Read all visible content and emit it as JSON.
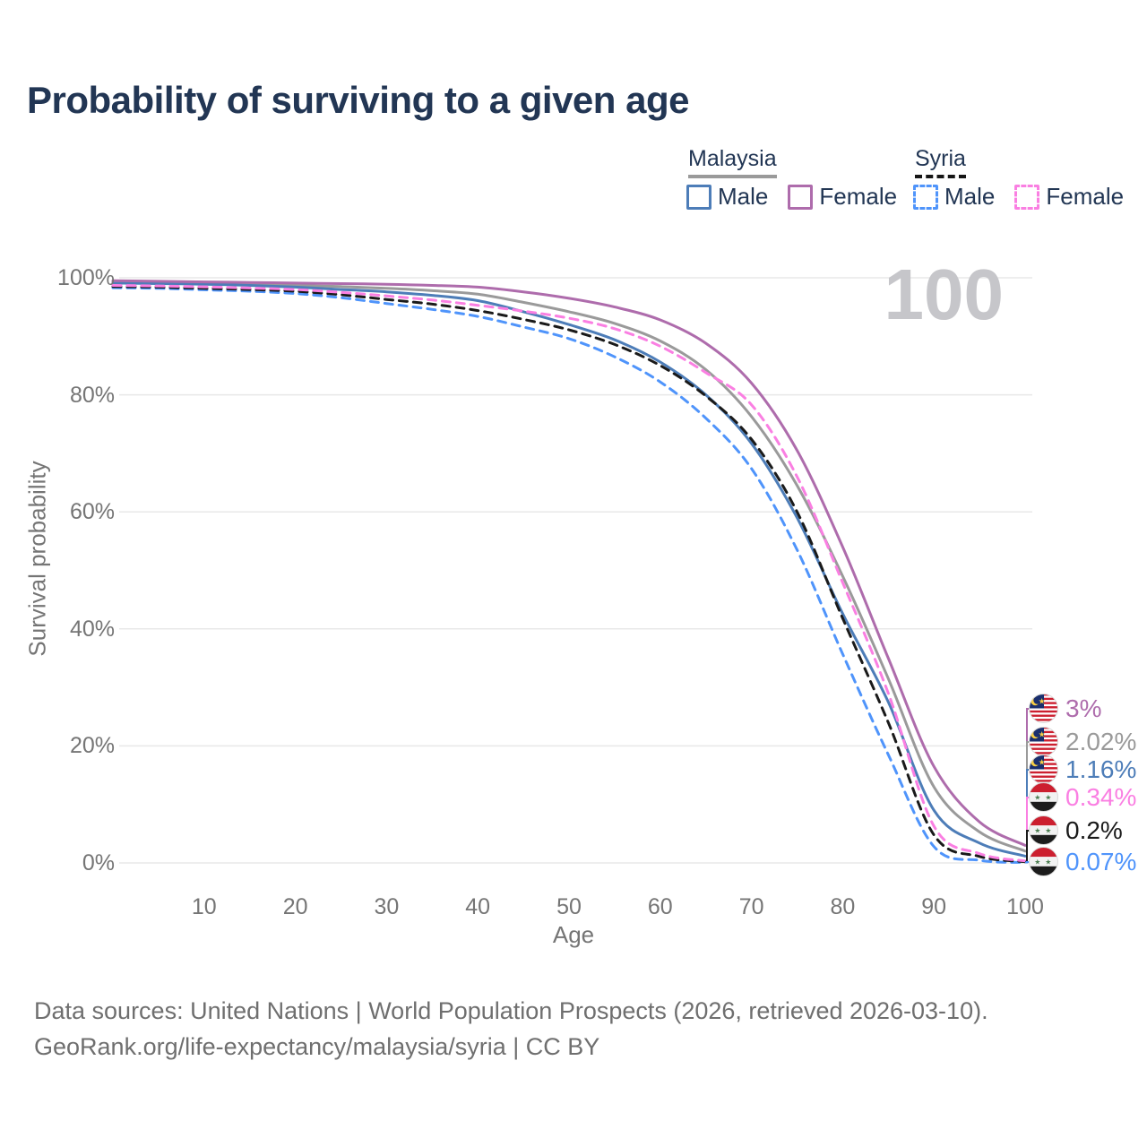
{
  "title": "Probability of surviving to a given age",
  "watermark": "100",
  "legend": {
    "groups": [
      {
        "label": "Malaysia",
        "line_style": "solid",
        "items": [
          {
            "label": "Male",
            "color": "#4d7db8",
            "dashed": false
          },
          {
            "label": "Female",
            "color": "#ae6cac",
            "dashed": false
          }
        ]
      },
      {
        "label": "Syria",
        "line_style": "dashed",
        "items": [
          {
            "label": "Male",
            "color": "#4f94fb",
            "dashed": true
          },
          {
            "label": "Female",
            "color": "#fa7fe2",
            "dashed": true
          }
        ]
      }
    ]
  },
  "axes": {
    "ylabel": "Survival probability",
    "xlabel": "Age",
    "y_ticks": [
      "0%",
      "20%",
      "40%",
      "60%",
      "80%",
      "100%"
    ],
    "y_tick_values": [
      0,
      20,
      40,
      60,
      80,
      100
    ],
    "x_ticks": [
      10,
      20,
      30,
      40,
      50,
      60,
      70,
      80,
      90,
      100
    ]
  },
  "chart_data": {
    "type": "line",
    "title": "Probability of surviving to a given age",
    "xlabel": "Age",
    "ylabel": "Survival probability",
    "xlim": [
      0,
      100
    ],
    "ylim": [
      0,
      100
    ],
    "grid": "horizontal-only",
    "legend_position": "top-right",
    "x": [
      0,
      5,
      10,
      15,
      20,
      25,
      30,
      35,
      40,
      45,
      50,
      55,
      60,
      65,
      70,
      75,
      80,
      85,
      90,
      95,
      100
    ],
    "series": [
      {
        "name": "Malaysia Female",
        "country": "Malaysia",
        "sex": "Female",
        "flag": "malaysia",
        "color": "#ae6cac",
        "dash": "solid",
        "end_label": "3%",
        "values": [
          99.5,
          99.4,
          99.3,
          99.2,
          99.1,
          99.0,
          98.9,
          98.7,
          98.4,
          97.6,
          96.5,
          95.0,
          92.8,
          88.8,
          82.0,
          70.5,
          54.0,
          35.0,
          16.5,
          7.0,
          3.0
        ]
      },
      {
        "name": "Malaysia Both sexes",
        "country": "Malaysia",
        "sex": "Both",
        "flag": "malaysia",
        "color": "#9a9a9a",
        "dash": "solid",
        "end_label": "2.02%",
        "values": [
          99.3,
          99.2,
          99.1,
          98.9,
          98.7,
          98.5,
          98.2,
          97.8,
          97.2,
          95.8,
          94.2,
          92.2,
          89.2,
          84.3,
          76.3,
          64.5,
          49.0,
          31.5,
          13.0,
          5.3,
          2.02
        ]
      },
      {
        "name": "Malaysia Male",
        "country": "Malaysia",
        "sex": "Male",
        "flag": "malaysia",
        "color": "#4d7db8",
        "dash": "solid",
        "end_label": "1.16%",
        "values": [
          99.1,
          99.0,
          98.9,
          98.7,
          98.4,
          98.0,
          97.6,
          97.0,
          96.1,
          94.2,
          92.0,
          89.4,
          85.6,
          80.0,
          71.7,
          59.0,
          42.6,
          27.5,
          9.0,
          3.4,
          1.16
        ]
      },
      {
        "name": "Syria Female",
        "country": "Syria",
        "sex": "Female",
        "flag": "syria",
        "color": "#fa7fe2",
        "dash": "dashed",
        "end_label": "0.34%",
        "values": [
          98.7,
          98.6,
          98.45,
          98.25,
          98.0,
          97.5,
          96.9,
          96.2,
          95.3,
          94.3,
          93.1,
          91.3,
          88.3,
          83.8,
          78.3,
          66.0,
          47.9,
          29.0,
          6.3,
          1.6,
          0.34
        ]
      },
      {
        "name": "Syria Both sexes",
        "country": "Syria",
        "sex": "Both",
        "flag": "syria",
        "color": "#1a1a1a",
        "dash": "dashed",
        "end_label": "0.2%",
        "values": [
          98.5,
          98.4,
          98.2,
          98.0,
          97.7,
          97.1,
          96.3,
          95.5,
          94.4,
          92.9,
          91.1,
          88.6,
          85.0,
          79.8,
          72.4,
          60.0,
          41.8,
          24.0,
          4.8,
          1.1,
          0.2
        ]
      },
      {
        "name": "Syria Male",
        "country": "Syria",
        "sex": "Male",
        "flag": "syria",
        "color": "#4f94fb",
        "dash": "dashed",
        "end_label": "0.07%",
        "values": [
          98.3,
          98.2,
          97.95,
          97.7,
          97.3,
          96.6,
          95.6,
          94.6,
          93.4,
          91.6,
          89.6,
          86.5,
          82.2,
          76.0,
          67.4,
          53.5,
          35.7,
          18.5,
          2.8,
          0.45,
          0.07
        ]
      }
    ]
  },
  "colors": {
    "title_text": "#223654",
    "axis_text": "#757575",
    "gridline": "#e8e8e8",
    "watermark": "#c6c6ca",
    "footer_text": "#6f6f6f"
  },
  "footer": {
    "line1": "Data sources: United Nations | World Population Prospects (2026, retrieved 2026-03-10).",
    "line2": "GeoRank.org/life-expectancy/malaysia/syria | CC BY"
  }
}
